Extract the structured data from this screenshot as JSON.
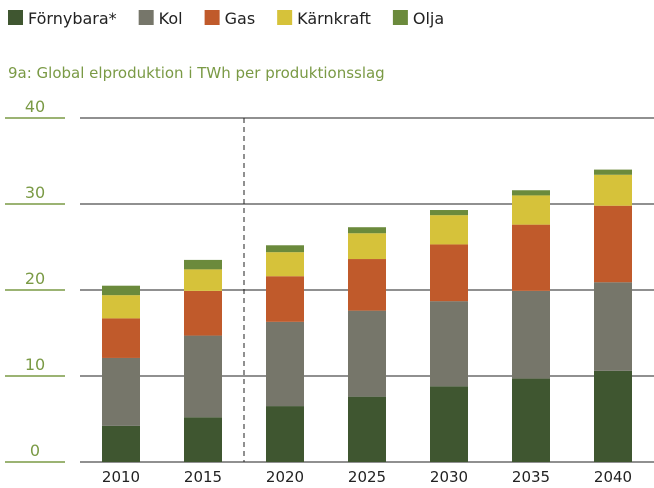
{
  "chart_data": {
    "type": "stacked_bar",
    "title": "9a: Global elproduktion i TWh per produktionsslag",
    "categories": [
      "2010",
      "2015",
      "2020",
      "2025",
      "2030",
      "2035",
      "2040"
    ],
    "series": [
      {
        "name": "Förnybara*",
        "color": "#3f5630",
        "values": [
          4.2,
          5.2,
          6.5,
          7.6,
          8.8,
          9.7,
          10.6
        ]
      },
      {
        "name": "Kol",
        "color": "#76766a",
        "values": [
          7.9,
          9.5,
          9.8,
          10.0,
          9.9,
          10.2,
          10.3
        ]
      },
      {
        "name": "Gas",
        "color": "#c05a2b",
        "values": [
          4.6,
          5.2,
          5.3,
          6.0,
          6.6,
          7.7,
          8.9
        ]
      },
      {
        "name": "Kärnkraft",
        "color": "#d6c23a",
        "values": [
          2.7,
          2.5,
          2.8,
          3.0,
          3.4,
          3.4,
          3.6
        ]
      },
      {
        "name": "Olja",
        "color": "#6b8a3c",
        "values": [
          1.1,
          1.1,
          0.8,
          0.7,
          0.6,
          0.6,
          0.6
        ]
      }
    ],
    "ylim": [
      0,
      40
    ],
    "yticks": [
      0,
      10,
      20,
      30,
      40
    ],
    "grid": true,
    "legend": "top"
  }
}
